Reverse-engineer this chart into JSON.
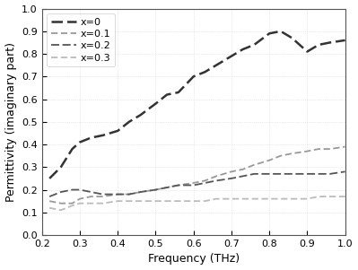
{
  "title": "",
  "xlabel": "Frequency (THz)",
  "ylabel": "Permittivity (imaginary part)",
  "xlim": [
    0.2,
    1.0
  ],
  "ylim": [
    0.0,
    1.0
  ],
  "background_color": "#ffffff",
  "grid_color": "#cccccc",
  "series": [
    {
      "label": "x=0",
      "color": "#333333",
      "linewidth": 1.8,
      "dashes": [
        5,
        2
      ],
      "x": [
        0.22,
        0.25,
        0.28,
        0.3,
        0.33,
        0.36,
        0.4,
        0.43,
        0.46,
        0.5,
        0.53,
        0.56,
        0.6,
        0.63,
        0.66,
        0.7,
        0.73,
        0.76,
        0.8,
        0.83,
        0.86,
        0.9,
        0.93,
        0.96,
        1.0
      ],
      "y": [
        0.25,
        0.3,
        0.38,
        0.41,
        0.43,
        0.44,
        0.46,
        0.5,
        0.53,
        0.58,
        0.62,
        0.63,
        0.7,
        0.72,
        0.75,
        0.79,
        0.82,
        0.84,
        0.89,
        0.9,
        0.87,
        0.81,
        0.84,
        0.85,
        0.86
      ]
    },
    {
      "label": "x=0.1",
      "color": "#999999",
      "linewidth": 1.3,
      "dashes": [
        4,
        2
      ],
      "x": [
        0.22,
        0.25,
        0.28,
        0.3,
        0.33,
        0.36,
        0.4,
        0.43,
        0.46,
        0.5,
        0.53,
        0.56,
        0.6,
        0.63,
        0.66,
        0.7,
        0.73,
        0.76,
        0.8,
        0.83,
        0.86,
        0.9,
        0.93,
        0.96,
        1.0
      ],
      "y": [
        0.15,
        0.14,
        0.14,
        0.16,
        0.17,
        0.17,
        0.18,
        0.18,
        0.19,
        0.2,
        0.21,
        0.22,
        0.23,
        0.24,
        0.26,
        0.28,
        0.29,
        0.31,
        0.33,
        0.35,
        0.36,
        0.37,
        0.38,
        0.38,
        0.39
      ]
    },
    {
      "label": "x=0.2",
      "color": "#555555",
      "linewidth": 1.3,
      "dashes": [
        5,
        2
      ],
      "x": [
        0.22,
        0.25,
        0.28,
        0.3,
        0.33,
        0.36,
        0.4,
        0.43,
        0.46,
        0.5,
        0.53,
        0.56,
        0.6,
        0.63,
        0.66,
        0.7,
        0.73,
        0.76,
        0.8,
        0.83,
        0.86,
        0.9,
        0.93,
        0.96,
        1.0
      ],
      "y": [
        0.17,
        0.19,
        0.2,
        0.2,
        0.19,
        0.18,
        0.18,
        0.18,
        0.19,
        0.2,
        0.21,
        0.22,
        0.22,
        0.23,
        0.24,
        0.25,
        0.26,
        0.27,
        0.27,
        0.27,
        0.27,
        0.27,
        0.27,
        0.27,
        0.28
      ]
    },
    {
      "label": "x=0.3",
      "color": "#bbbbbb",
      "linewidth": 1.3,
      "dashes": [
        4,
        2
      ],
      "x": [
        0.22,
        0.25,
        0.28,
        0.3,
        0.33,
        0.36,
        0.4,
        0.43,
        0.46,
        0.5,
        0.53,
        0.56,
        0.6,
        0.63,
        0.66,
        0.7,
        0.73,
        0.76,
        0.8,
        0.83,
        0.86,
        0.9,
        0.93,
        0.96,
        1.0
      ],
      "y": [
        0.12,
        0.11,
        0.13,
        0.14,
        0.14,
        0.14,
        0.15,
        0.15,
        0.15,
        0.15,
        0.15,
        0.15,
        0.15,
        0.15,
        0.16,
        0.16,
        0.16,
        0.16,
        0.16,
        0.16,
        0.16,
        0.16,
        0.17,
        0.17,
        0.17
      ]
    }
  ],
  "legend": {
    "loc": "upper left",
    "fontsize": 8,
    "framealpha": 0.6,
    "edgecolor": "#aaaaaa"
  },
  "xticks": [
    0.2,
    0.3,
    0.4,
    0.5,
    0.6,
    0.7,
    0.8,
    0.9,
    1.0
  ],
  "yticks": [
    0.0,
    0.1,
    0.2,
    0.3,
    0.4,
    0.5,
    0.6,
    0.7,
    0.8,
    0.9,
    1.0
  ],
  "tick_fontsize": 8,
  "axis_label_fontsize": 9
}
